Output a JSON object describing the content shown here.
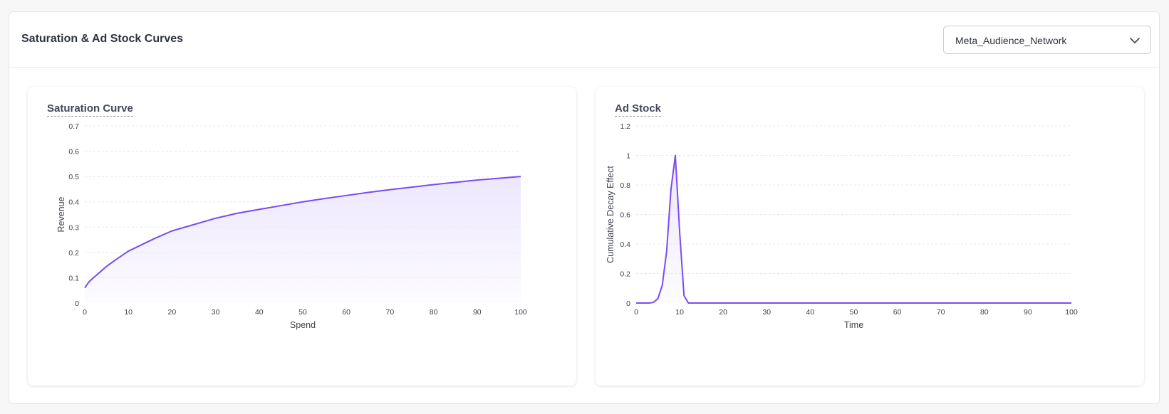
{
  "header": {
    "title": "Saturation & Ad Stock Curves",
    "channel_select": {
      "value": "Meta_Audience_Network"
    }
  },
  "colors": {
    "line": "#7a4cf0",
    "fill": "#ece6fd",
    "grid": "#e8e8ee"
  },
  "chart_data": [
    {
      "type": "area",
      "title": "Saturation Curve",
      "xlabel": "Spend",
      "ylabel": "Revenue",
      "xlim": [
        0,
        100
      ],
      "ylim": [
        0,
        0.7
      ],
      "xticks": [
        0,
        10,
        20,
        30,
        40,
        50,
        60,
        70,
        80,
        90,
        100
      ],
      "yticks": [
        0,
        0.1,
        0.2,
        0.3,
        0.4,
        0.5,
        0.6,
        0.7
      ],
      "xtick_labels": [
        "0",
        "10",
        "20",
        "30",
        "40",
        "50",
        "60",
        "70",
        "80",
        "90",
        "100"
      ],
      "ytick_labels": [
        "0",
        "0.1",
        "0.2",
        "0.3",
        "0.4",
        "0.5",
        "0.6",
        "0.7"
      ],
      "grid": true,
      "x": [
        0,
        1,
        2,
        3,
        4,
        5,
        7,
        10,
        13,
        16,
        20,
        25,
        30,
        35,
        40,
        45,
        50,
        55,
        60,
        65,
        70,
        75,
        80,
        85,
        90,
        95,
        100
      ],
      "y": [
        0.06,
        0.085,
        0.1,
        0.115,
        0.13,
        0.145,
        0.17,
        0.205,
        0.23,
        0.255,
        0.285,
        0.31,
        0.335,
        0.355,
        0.37,
        0.385,
        0.4,
        0.413,
        0.425,
        0.437,
        0.448,
        0.458,
        0.468,
        0.477,
        0.486,
        0.493,
        0.5
      ]
    },
    {
      "type": "line",
      "title": "Ad Stock",
      "xlabel": "Time",
      "ylabel": "Cumulative Decay Effect",
      "xlim": [
        0,
        100
      ],
      "ylim": [
        0,
        1.2
      ],
      "xticks": [
        0,
        10,
        20,
        30,
        40,
        50,
        60,
        70,
        80,
        90,
        100
      ],
      "yticks": [
        0,
        0.2,
        0.4,
        0.6,
        0.8,
        1,
        1.2
      ],
      "xtick_labels": [
        "0",
        "10",
        "20",
        "30",
        "40",
        "50",
        "60",
        "70",
        "80",
        "90",
        "100"
      ],
      "ytick_labels": [
        "0",
        "0.2",
        "0.4",
        "0.6",
        "0.8",
        "1",
        "1.2"
      ],
      "grid": true,
      "x": [
        0,
        1,
        2,
        3,
        4,
        5,
        6,
        7,
        8,
        9,
        10,
        11,
        12,
        13,
        20,
        30,
        40,
        50,
        60,
        70,
        80,
        90,
        100
      ],
      "y": [
        0,
        0,
        0,
        0,
        0.005,
        0.03,
        0.12,
        0.35,
        0.77,
        1.0,
        0.48,
        0.05,
        0,
        0,
        0,
        0,
        0,
        0,
        0,
        0,
        0,
        0,
        0
      ]
    }
  ]
}
